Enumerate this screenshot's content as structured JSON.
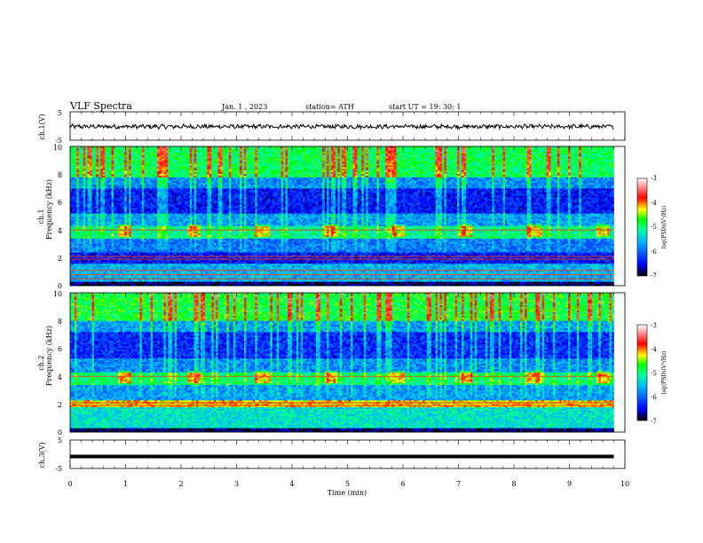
{
  "header": {
    "title": "VLF  Spectra",
    "date": "Jan.  1  , 2023",
    "station": "station= ATH",
    "start_ut": "start  UT  =   19: 30: 1"
  },
  "ch1_v": {
    "ylabel": "ch.1(V)",
    "ticks": [
      "5",
      "-5"
    ]
  },
  "ch1_spec": {
    "ylabel_line1": "ch.1",
    "ylabel_line2": "Frequency  (kHz)",
    "ticks": [
      "0",
      "2",
      "4",
      "6",
      "8",
      "10"
    ]
  },
  "ch2_spec": {
    "ylabel_line1": "ch.2",
    "ylabel_line2": "Frequency  (kHz)",
    "ticks": [
      "0",
      "2",
      "4",
      "6",
      "8",
      "10"
    ]
  },
  "ch3_v": {
    "ylabel": "ch.3(V)",
    "ticks": [
      "5",
      "-5"
    ]
  },
  "xaxis": {
    "label": "Time  (min)",
    "ticks": [
      "0",
      "1",
      "2",
      "3",
      "4",
      "5",
      "6",
      "7",
      "8",
      "9",
      "10"
    ]
  },
  "colorbar1": {
    "ticks": [
      "-3",
      "-4",
      "-5",
      "-6",
      "-7"
    ],
    "label": "log(PSD)(V²/Hz)"
  },
  "colorbar2": {
    "ticks": [
      "-3",
      "-4",
      "-5",
      "-6",
      "-7"
    ],
    "label": "log(PSD)(V²/Hz)"
  },
  "chart_data": [
    {
      "type": "line",
      "panel": "ch.1(V)",
      "xlabel": "Time (min)",
      "ylabel": "ch.1(V)",
      "xlim": [
        0,
        10
      ],
      "ylim": [
        -5,
        5
      ],
      "series": [
        {
          "x": [
            0,
            9.8
          ],
          "values": [
            -0.2,
            -0.2
          ]
        }
      ]
    },
    {
      "type": "heatmap",
      "panel": "ch.1 spectrogram",
      "xlabel": "Time (min)",
      "ylabel": "Frequency (kHz)",
      "xlim": [
        0,
        10
      ],
      "ylim": [
        0,
        10
      ],
      "data_end_min": 9.8,
      "colorbar_range": [
        -7,
        -3
      ],
      "colorbar_label": "log(PSD)(V²/Hz)",
      "bands": [
        {
          "f": [
            0,
            0.3
          ],
          "value": -6.8
        },
        {
          "f": [
            0.3,
            1.6
          ],
          "value": -5.6
        },
        {
          "f": [
            1.6,
            2.4
          ],
          "value": -6.4
        },
        {
          "f": [
            2.4,
            3.4
          ],
          "value": -5.9
        },
        {
          "f": [
            3.4,
            4.3
          ],
          "value": -5.1
        },
        {
          "f": [
            4.3,
            5.2
          ],
          "value": -5.7
        },
        {
          "f": [
            5.2,
            7.0
          ],
          "value": -6.4
        },
        {
          "f": [
            7.0,
            7.8
          ],
          "value": -5.8
        },
        {
          "f": [
            7.8,
            10.0
          ],
          "value": -4.9
        }
      ],
      "bright_lines_khz": [
        0.5,
        0.8,
        1.1,
        1.9,
        2.1,
        4.0
      ],
      "bursts_min": [
        0.95,
        2.2,
        3.45,
        4.7,
        5.9,
        7.1,
        8.35,
        9.6
      ]
    },
    {
      "type": "heatmap",
      "panel": "ch.2 spectrogram",
      "xlabel": "Time (min)",
      "ylabel": "Frequency (kHz)",
      "xlim": [
        0,
        10
      ],
      "ylim": [
        0,
        10
      ],
      "data_end_min": 9.8,
      "colorbar_range": [
        -7,
        -3
      ],
      "colorbar_label": "log(PSD)(V²/Hz)",
      "bands": [
        {
          "f": [
            0,
            0.3
          ],
          "value": -6.8
        },
        {
          "f": [
            0.3,
            1.8
          ],
          "value": -5.3
        },
        {
          "f": [
            1.8,
            2.3
          ],
          "value": -4.2
        },
        {
          "f": [
            2.3,
            3.4
          ],
          "value": -5.7
        },
        {
          "f": [
            3.4,
            4.3
          ],
          "value": -5.0
        },
        {
          "f": [
            4.3,
            5.3
          ],
          "value": -5.8
        },
        {
          "f": [
            5.3,
            7.2
          ],
          "value": -6.3
        },
        {
          "f": [
            7.2,
            8.0
          ],
          "value": -5.7
        },
        {
          "f": [
            8.0,
            10.0
          ],
          "value": -4.8
        }
      ],
      "bright_lines_khz": [
        1.9,
        2.1,
        4.0
      ],
      "bursts_min": [
        0.95,
        2.2,
        3.45,
        4.7,
        5.9,
        7.1,
        8.35,
        9.6
      ]
    },
    {
      "type": "line",
      "panel": "ch.3(V)",
      "xlabel": "Time (min)",
      "ylabel": "ch.3(V)",
      "xlim": [
        0,
        10
      ],
      "ylim": [
        -5,
        5
      ],
      "series": [
        {
          "x": [
            0,
            9.8
          ],
          "values": [
            -0.8,
            -0.8
          ]
        }
      ]
    }
  ],
  "colors": {
    "scale": [
      "#000000",
      "#0000ff",
      "#00b4ff",
      "#00ff96",
      "#00ff00",
      "#ffff00",
      "#ff0000",
      "#ffffff"
    ]
  }
}
